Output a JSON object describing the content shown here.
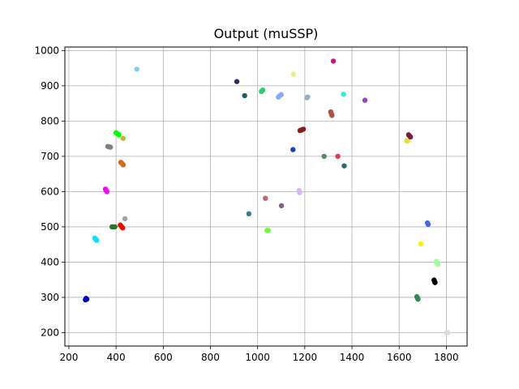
{
  "chart_data": {
    "type": "scatter",
    "title": "Output (muSSP)",
    "xlabel": "",
    "ylabel": "",
    "xlim": [
      183,
      1888
    ],
    "ylim": [
      162,
      1010
    ],
    "xticks": [
      200,
      400,
      600,
      800,
      1000,
      1200,
      1400,
      1600,
      1800
    ],
    "yticks": [
      200,
      300,
      400,
      500,
      600,
      700,
      800,
      900,
      1000
    ],
    "grid": true,
    "series": [
      {
        "color": "#0000cc",
        "points": [
          [
            273,
            297
          ],
          [
            270,
            293
          ],
          [
            276,
            295
          ]
        ]
      },
      {
        "color": "#00e5ff",
        "points": [
          [
            310,
            468
          ],
          [
            315,
            464
          ],
          [
            318,
            462
          ]
        ]
      },
      {
        "color": "#ff00ff",
        "points": [
          [
            355,
            607
          ],
          [
            358,
            603
          ],
          [
            361,
            600
          ]
        ]
      },
      {
        "color": "#7f7f7f",
        "points": [
          [
            365,
            728
          ],
          [
            370,
            727
          ],
          [
            376,
            726
          ]
        ]
      },
      {
        "color": "#1f7a1f",
        "points": [
          [
            383,
            500
          ],
          [
            389,
            500
          ],
          [
            395,
            500
          ]
        ]
      },
      {
        "color": "#00ff00",
        "points": [
          [
            400,
            767
          ],
          [
            406,
            764
          ],
          [
            412,
            761
          ]
        ]
      },
      {
        "color": "#ff0000",
        "points": [
          [
            418,
            505
          ],
          [
            423,
            501
          ],
          [
            428,
            497
          ]
        ]
      },
      {
        "color": "#d2691e",
        "points": [
          [
            420,
            683
          ],
          [
            425,
            680
          ],
          [
            430,
            676
          ]
        ]
      },
      {
        "color": "#b5bd2f",
        "points": [
          [
            430,
            751
          ]
        ]
      },
      {
        "color": "#9aa3a8",
        "points": [
          [
            438,
            523
          ]
        ]
      },
      {
        "color": "#87ceeb",
        "points": [
          [
            488,
            947
          ]
        ]
      },
      {
        "color": "#2f2f5f",
        "points": [
          [
            912,
            912
          ]
        ]
      },
      {
        "color": "#1f5f5f",
        "points": [
          [
            945,
            872
          ]
        ]
      },
      {
        "color": "#3b7a8c",
        "points": [
          [
            963,
            537
          ]
        ]
      },
      {
        "color": "#2ecc71",
        "points": [
          [
            1016,
            884
          ],
          [
            1022,
            888
          ]
        ]
      },
      {
        "color": "#bc6a6a",
        "points": [
          [
            1033,
            581
          ]
        ]
      },
      {
        "color": "#66ff33",
        "points": [
          [
            1040,
            490
          ],
          [
            1045,
            490
          ]
        ]
      },
      {
        "color": "#8fa8ff",
        "points": [
          [
            1088,
            868
          ],
          [
            1094,
            872
          ],
          [
            1100,
            875
          ]
        ]
      },
      {
        "color": "#8e5b8e",
        "points": [
          [
            1101,
            560
          ]
        ]
      },
      {
        "color": "#1f3fbf",
        "points": [
          [
            1150,
            719
          ]
        ]
      },
      {
        "color": "#eeee88",
        "points": [
          [
            1152,
            933
          ]
        ]
      },
      {
        "color": "#d8b4f8",
        "points": [
          [
            1176,
            603
          ],
          [
            1178,
            597
          ]
        ]
      },
      {
        "color": "#8b1a1a",
        "points": [
          [
            1180,
            773
          ],
          [
            1187,
            775
          ],
          [
            1194,
            777
          ]
        ]
      },
      {
        "color": "#8fb0c4",
        "points": [
          [
            1209,
            866
          ],
          [
            1212,
            868
          ]
        ]
      },
      {
        "color": "#5b8c5b",
        "points": [
          [
            1282,
            700
          ]
        ]
      },
      {
        "color": "#b5523b",
        "points": [
          [
            1310,
            826
          ],
          [
            1313,
            820
          ],
          [
            1315,
            816
          ]
        ]
      },
      {
        "color": "#c71585",
        "points": [
          [
            1321,
            970
          ]
        ]
      },
      {
        "color": "#dc3b5a",
        "points": [
          [
            1340,
            700
          ]
        ]
      },
      {
        "color": "#2bf0d8",
        "points": [
          [
            1364,
            876
          ]
        ]
      },
      {
        "color": "#2e6b5e",
        "points": [
          [
            1367,
            673
          ]
        ]
      },
      {
        "color": "#9b40c4",
        "points": [
          [
            1455,
            859
          ]
        ]
      },
      {
        "color": "#eedd33",
        "points": [
          [
            1632,
            744
          ],
          [
            1636,
            744
          ]
        ]
      },
      {
        "color": "#7a1f3d",
        "points": [
          [
            1640,
            761
          ],
          [
            1644,
            758
          ],
          [
            1648,
            755
          ]
        ]
      },
      {
        "color": "#2e8b57",
        "points": [
          [
            1675,
            302
          ],
          [
            1678,
            298
          ],
          [
            1680,
            295
          ]
        ]
      },
      {
        "color": "#ffee00",
        "points": [
          [
            1692,
            452
          ]
        ]
      },
      {
        "color": "#4169e1",
        "points": [
          [
            1720,
            511
          ],
          [
            1723,
            507
          ]
        ]
      },
      {
        "color": "#000000",
        "points": [
          [
            1748,
            349
          ],
          [
            1750,
            345
          ],
          [
            1752,
            342
          ]
        ]
      },
      {
        "color": "#99ff99",
        "points": [
          [
            1758,
            402
          ],
          [
            1761,
            398
          ],
          [
            1764,
            394
          ]
        ]
      },
      {
        "color": "#dcdcdc",
        "points": [
          [
            1800,
            200
          ],
          [
            1806,
            200
          ]
        ]
      }
    ]
  }
}
